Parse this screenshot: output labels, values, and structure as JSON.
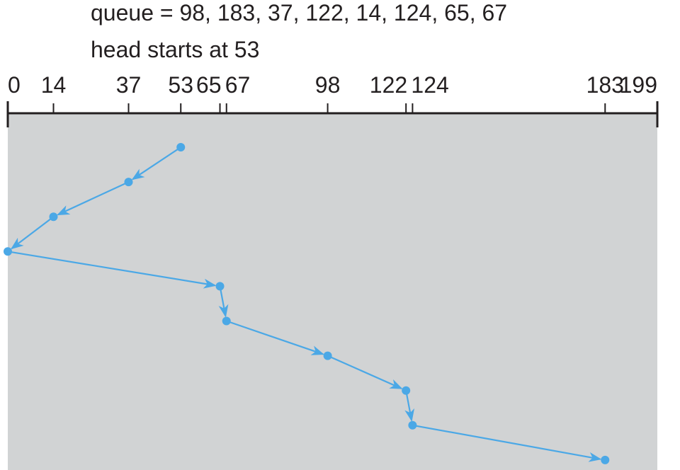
{
  "caption": {
    "queue_line": "queue = 98, 183, 37, 122, 14, 124, 65, 67",
    "head_line": "head starts at 53"
  },
  "axis": {
    "min": 0,
    "max": 199,
    "ticks": [
      0,
      14,
      37,
      53,
      65,
      67,
      98,
      122,
      124,
      183,
      199
    ]
  },
  "seek_order": [
    53,
    37,
    14,
    0,
    65,
    67,
    98,
    122,
    124,
    183
  ],
  "colors": {
    "panel": "#d1d3d4",
    "path": "#4ba8e6",
    "axis": "#231f20",
    "text": "#231f20"
  }
}
